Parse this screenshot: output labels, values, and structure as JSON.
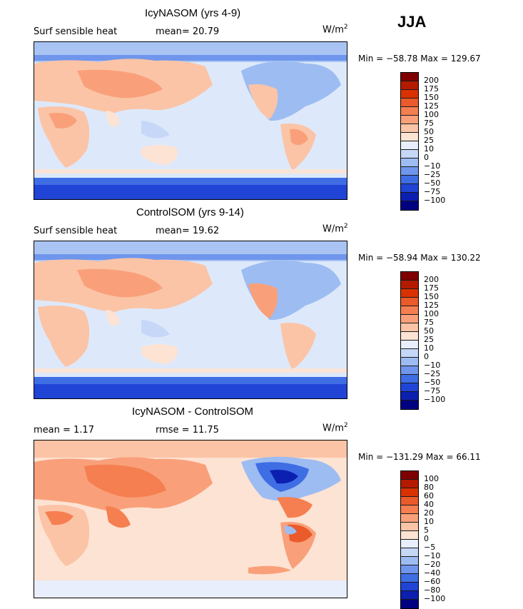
{
  "season": "JJA",
  "panels": [
    {
      "title": "IcyNASOM (yrs 4-9)",
      "left_label": "Surf sensible heat",
      "stat1": "mean=  20.79",
      "stat2": "",
      "units": "W/m",
      "units_exp": "2",
      "minmax": "Min = −58.78 Max = 129.67",
      "colorbar": {
        "labels": [
          "200",
          "175",
          "150",
          "125",
          "100",
          "75",
          "50",
          "25",
          "10",
          "0",
          "−10",
          "−25",
          "−50",
          "−75",
          "−100"
        ],
        "colors": [
          "#7f0000",
          "#b31a00",
          "#d93200",
          "#eb5a2a",
          "#f57f50",
          "#f9a07a",
          "#fbc4a6",
          "#fde3d3",
          "#e8eefb",
          "#c6d7f7",
          "#9dbcf2",
          "#6f96ec",
          "#3f6de4",
          "#1f44d6",
          "#0b1fb0",
          "#000080"
        ]
      }
    },
    {
      "title": "ControlSOM (yrs 9-14)",
      "left_label": "Surf sensible heat",
      "stat1": "mean=  19.62",
      "stat2": "",
      "units": "W/m",
      "units_exp": "2",
      "minmax": "Min = −58.94 Max = 130.22",
      "colorbar": {
        "labels": [
          "200",
          "175",
          "150",
          "125",
          "100",
          "75",
          "50",
          "25",
          "10",
          "0",
          "−10",
          "−25",
          "−50",
          "−75",
          "−100"
        ],
        "colors": [
          "#7f0000",
          "#b31a00",
          "#d93200",
          "#eb5a2a",
          "#f57f50",
          "#f9a07a",
          "#fbc4a6",
          "#fde3d3",
          "#e8eefb",
          "#c6d7f7",
          "#9dbcf2",
          "#6f96ec",
          "#3f6de4",
          "#1f44d6",
          "#0b1fb0",
          "#000080"
        ]
      }
    },
    {
      "title": "IcyNASOM - ControlSOM",
      "left_label": "mean =   1.17",
      "stat1": "rmse =  11.75",
      "stat2": "",
      "units": "W/m",
      "units_exp": "2",
      "minmax": "Min = −131.29 Max =  66.11",
      "colorbar": {
        "labels": [
          "100",
          "80",
          "60",
          "40",
          "20",
          "10",
          "5",
          "0",
          "−5",
          "−10",
          "−20",
          "−40",
          "−60",
          "−80",
          "−100"
        ],
        "colors": [
          "#7f0000",
          "#b31a00",
          "#d93200",
          "#eb5a2a",
          "#f57f50",
          "#f9a07a",
          "#fbc4a6",
          "#fde3d3",
          "#e8eefb",
          "#c6d7f7",
          "#9dbcf2",
          "#6f96ec",
          "#3f6de4",
          "#1f44d6",
          "#0b1fb0",
          "#000080"
        ]
      }
    }
  ]
}
